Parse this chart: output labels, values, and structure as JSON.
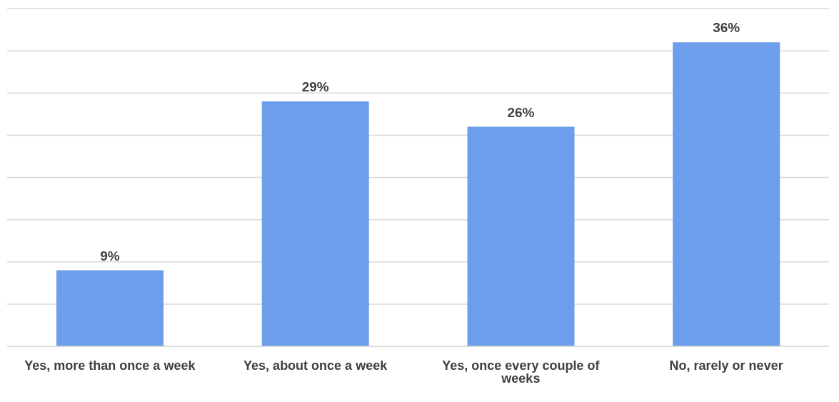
{
  "chart_data": {
    "type": "bar",
    "categories": [
      "Yes, more than once a week",
      "Yes, about once a week",
      "Yes, once every couple of weeks",
      "No, rarely or never"
    ],
    "values": [
      9,
      29,
      26,
      36
    ],
    "value_labels": [
      "9%",
      "29%",
      "26%",
      "36%"
    ],
    "color": "#6d9eeb",
    "ylim": [
      0,
      40
    ],
    "yticks": [
      {
        "value": 0,
        "label": null
      },
      {
        "value": 5,
        "label": null
      },
      {
        "value": 10,
        "label": null
      },
      {
        "value": 15,
        "label": null
      },
      {
        "value": 20,
        "label": null
      },
      {
        "value": 25,
        "label": null
      },
      {
        "value": 30,
        "label": null
      },
      {
        "value": 35,
        "label": null
      },
      {
        "value": 40,
        "label": null
      }
    ],
    "tick_labels": "x",
    "grid": "y"
  }
}
